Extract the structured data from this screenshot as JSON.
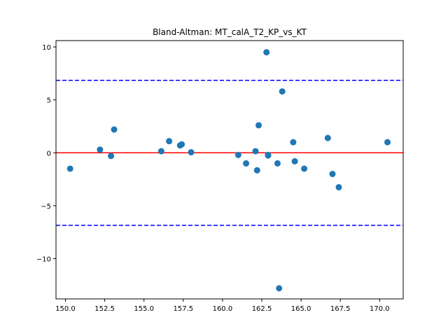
{
  "chart_data": {
    "type": "scatter",
    "title": "Bland-Altman: MT_calA_T2_KP_vs_KT",
    "xlabel": "",
    "ylabel": "",
    "xlim": [
      149.4,
      171.5
    ],
    "ylim": [
      -13.8,
      10.6
    ],
    "x_ticks": [
      150.0,
      152.5,
      155.0,
      157.5,
      160.0,
      162.5,
      165.0,
      167.5,
      170.0
    ],
    "x_tick_labels": [
      "150.0",
      "152.5",
      "155.0",
      "157.5",
      "160.0",
      "162.5",
      "165.0",
      "167.5",
      "170.0"
    ],
    "y_ticks": [
      -10,
      -5,
      0,
      5,
      10
    ],
    "y_tick_labels": [
      "−10",
      "−5",
      "0",
      "5",
      "10"
    ],
    "grid": false,
    "points": [
      {
        "x": 150.3,
        "y": -1.5
      },
      {
        "x": 152.2,
        "y": 0.3
      },
      {
        "x": 152.9,
        "y": -0.3
      },
      {
        "x": 153.1,
        "y": 2.2
      },
      {
        "x": 156.1,
        "y": 0.15
      },
      {
        "x": 156.6,
        "y": 1.1
      },
      {
        "x": 157.3,
        "y": 0.7
      },
      {
        "x": 157.4,
        "y": 0.8
      },
      {
        "x": 158.0,
        "y": 0.05
      },
      {
        "x": 161.0,
        "y": -0.2
      },
      {
        "x": 161.5,
        "y": -1.0
      },
      {
        "x": 162.1,
        "y": 0.15
      },
      {
        "x": 162.2,
        "y": -1.65
      },
      {
        "x": 162.3,
        "y": 2.6
      },
      {
        "x": 162.8,
        "y": 9.5
      },
      {
        "x": 162.9,
        "y": -0.25
      },
      {
        "x": 162.9,
        "y": -0.2
      },
      {
        "x": 163.5,
        "y": -1.0
      },
      {
        "x": 163.6,
        "y": -12.8
      },
      {
        "x": 163.8,
        "y": 5.8
      },
      {
        "x": 164.5,
        "y": 1.0
      },
      {
        "x": 164.6,
        "y": -0.8
      },
      {
        "x": 165.2,
        "y": -1.5
      },
      {
        "x": 166.7,
        "y": 1.4
      },
      {
        "x": 167.0,
        "y": -2.0
      },
      {
        "x": 167.4,
        "y": -3.25
      },
      {
        "x": 170.5,
        "y": 1.0
      }
    ],
    "point_color": "#1f77b4",
    "mean_line": {
      "y": 0.0,
      "color": "#ff0000",
      "style": "solid"
    },
    "limit_lines": [
      {
        "y": 6.85,
        "color": "#0000ff",
        "style": "dashed"
      },
      {
        "y": -6.85,
        "color": "#0000ff",
        "style": "dashed"
      }
    ]
  }
}
